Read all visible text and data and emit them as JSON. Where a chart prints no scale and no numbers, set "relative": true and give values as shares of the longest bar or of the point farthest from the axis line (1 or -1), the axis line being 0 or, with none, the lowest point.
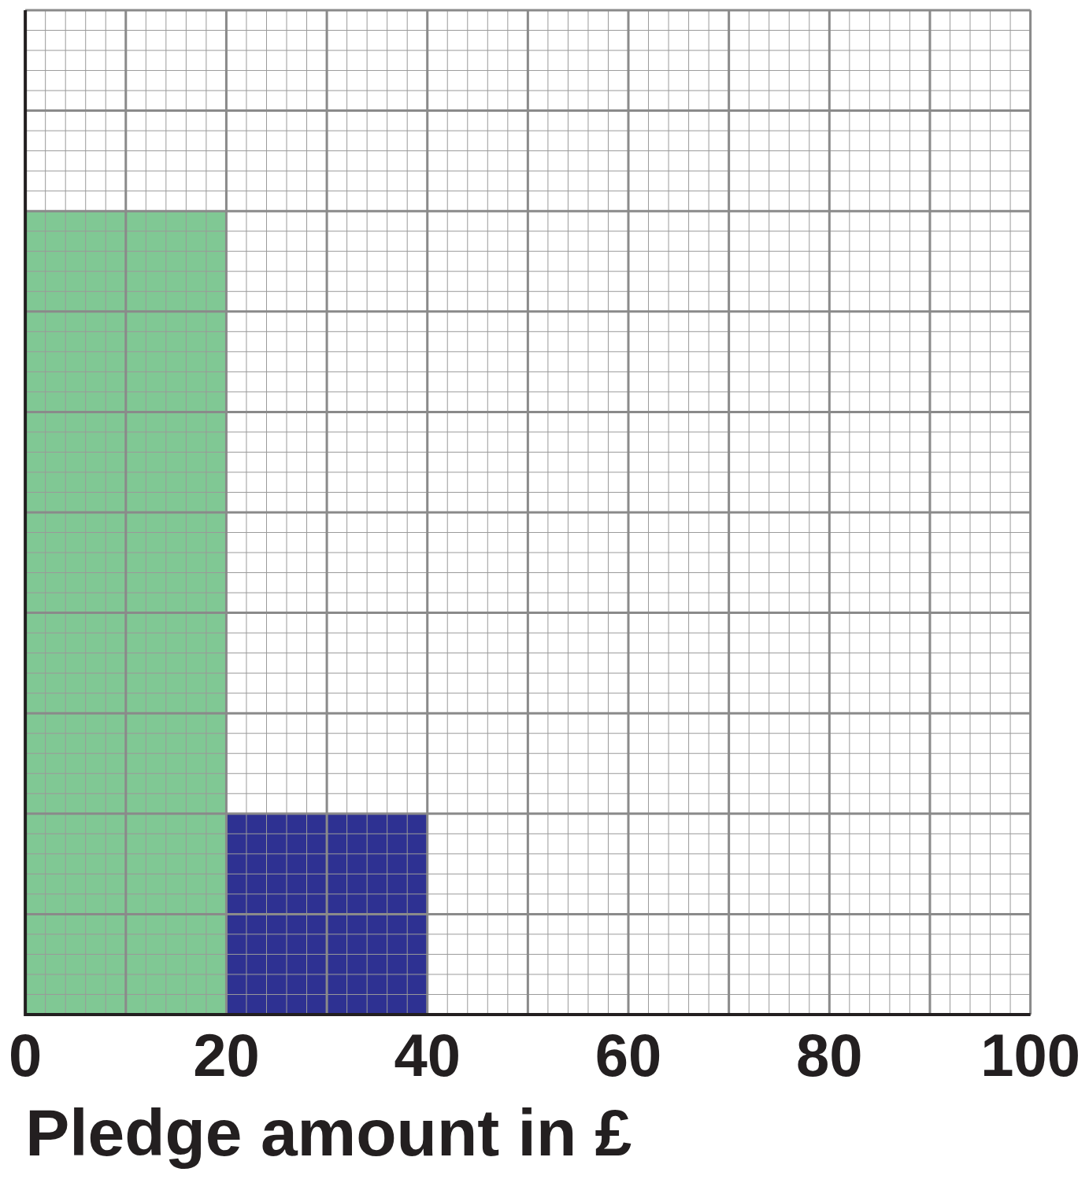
{
  "chart_data": {
    "type": "bar",
    "xlabel": "Pledge amount in £",
    "x": [
      10,
      30
    ],
    "values": [
      1,
      0.25
    ],
    "colors": [
      "#80c894",
      "#2e3192"
    ],
    "relative": true,
    "xlim": [
      0,
      100
    ],
    "xticks": [
      0,
      20,
      40,
      60,
      80,
      100
    ],
    "grid": true
  }
}
